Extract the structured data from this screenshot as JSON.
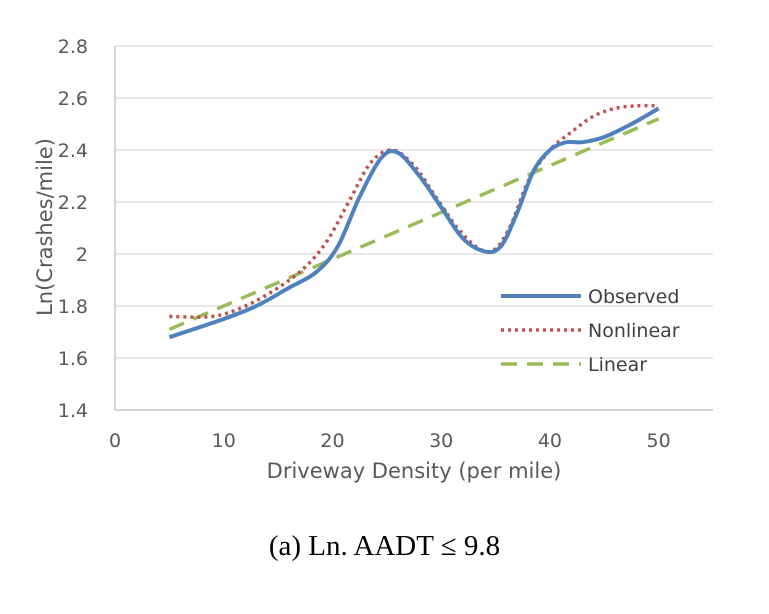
{
  "chart_data": {
    "type": "line",
    "xlabel": "Driveway Density (per mile)",
    "ylabel": "Ln(Crashes/mile)",
    "xlim": [
      0,
      55
    ],
    "ylim": [
      1.4,
      2.8
    ],
    "xticks": [
      0,
      10,
      20,
      30,
      40,
      50
    ],
    "yticks": [
      1.4,
      1.6,
      1.8,
      2.0,
      2.2,
      2.4,
      2.6,
      2.8
    ],
    "ytick_labels": [
      "1.4",
      "1.6",
      "1.8",
      "2",
      "2.2",
      "2.4",
      "2.6",
      "2.8"
    ],
    "grid": "horizontal",
    "legend": "right",
    "series": [
      {
        "name": "Observed",
        "color": "#4f81bd",
        "style": "solid",
        "x": [
          5,
          10,
          13,
          16,
          18.5,
          20.5,
          22.5,
          24.5,
          26,
          28,
          30,
          32,
          34,
          35.5,
          37,
          38.5,
          40,
          41.5,
          43,
          45,
          47.5,
          50
        ],
        "y": [
          1.68,
          1.75,
          1.8,
          1.87,
          1.93,
          2.03,
          2.22,
          2.37,
          2.39,
          2.3,
          2.18,
          2.06,
          2.01,
          2.03,
          2.16,
          2.32,
          2.4,
          2.43,
          2.43,
          2.45,
          2.5,
          2.56
        ]
      },
      {
        "name": "Nonlinear",
        "color": "#c0504d",
        "style": "dotted",
        "x": [
          5,
          9,
          12,
          15,
          17.5,
          19.5,
          21.5,
          23.5,
          25.5,
          27.5,
          29.5,
          31.5,
          33.5,
          35,
          36.5,
          38,
          40,
          42,
          44,
          46,
          48,
          50
        ],
        "y": [
          1.76,
          1.76,
          1.8,
          1.87,
          1.95,
          2.05,
          2.2,
          2.35,
          2.4,
          2.34,
          2.22,
          2.1,
          2.02,
          2.02,
          2.12,
          2.28,
          2.4,
          2.47,
          2.53,
          2.56,
          2.57,
          2.57
        ]
      },
      {
        "name": "Linear",
        "color": "#9bbb59",
        "style": "dashed",
        "x": [
          5,
          50
        ],
        "y": [
          1.71,
          2.52
        ]
      }
    ]
  },
  "caption": "(a) Ln. AADT ≤ 9.8"
}
